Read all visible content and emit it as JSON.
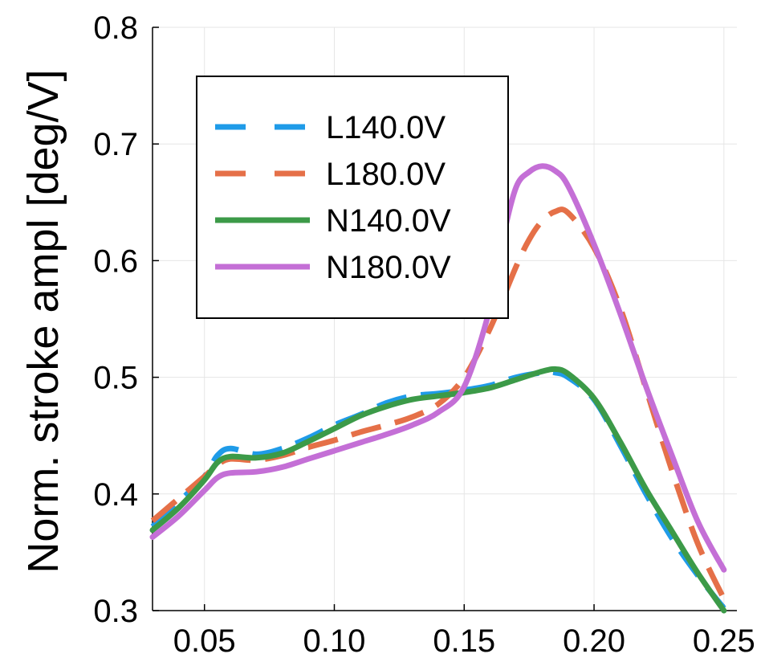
{
  "chart_data": {
    "type": "line",
    "title": "",
    "xlabel": "",
    "ylabel": "Norm. stroke ampl [deg/V]",
    "xlim": [
      0.03,
      0.255
    ],
    "ylim": [
      0.3,
      0.8
    ],
    "xticks": [
      0.05,
      0.1,
      0.15,
      0.2,
      0.25
    ],
    "xtick_labels": [
      "0.05",
      "0.10",
      "0.15",
      "0.20",
      "0.25"
    ],
    "yticks": [
      0.3,
      0.4,
      0.5,
      0.6,
      0.7,
      0.8
    ],
    "ytick_labels": [
      "0.3",
      "0.4",
      "0.5",
      "0.6",
      "0.7",
      "0.8"
    ],
    "grid": true,
    "legend_position": "top-left",
    "series": [
      {
        "name": "L140.0V",
        "color": "#1f9be8",
        "style": "dashed",
        "x": [
          0.03,
          0.04,
          0.05,
          0.055,
          0.06,
          0.07,
          0.08,
          0.09,
          0.1,
          0.11,
          0.12,
          0.13,
          0.14,
          0.15,
          0.16,
          0.17,
          0.18,
          0.185,
          0.19,
          0.2,
          0.21,
          0.22,
          0.23,
          0.24,
          0.25
        ],
        "y": [
          0.372,
          0.393,
          0.415,
          0.433,
          0.439,
          0.434,
          0.439,
          0.448,
          0.459,
          0.468,
          0.478,
          0.484,
          0.486,
          0.489,
          0.493,
          0.5,
          0.504,
          0.504,
          0.5,
          0.481,
          0.442,
          0.4,
          0.362,
          0.33,
          0.302
        ]
      },
      {
        "name": "L180.0V",
        "color": "#e57048",
        "style": "dashed",
        "x": [
          0.03,
          0.04,
          0.05,
          0.055,
          0.06,
          0.07,
          0.08,
          0.09,
          0.1,
          0.11,
          0.12,
          0.13,
          0.14,
          0.15,
          0.16,
          0.17,
          0.175,
          0.18,
          0.185,
          0.19,
          0.2,
          0.21,
          0.22,
          0.23,
          0.24,
          0.25
        ],
        "y": [
          0.377,
          0.396,
          0.415,
          0.425,
          0.43,
          0.429,
          0.433,
          0.44,
          0.446,
          0.453,
          0.459,
          0.466,
          0.477,
          0.5,
          0.542,
          0.595,
          0.618,
          0.634,
          0.642,
          0.641,
          0.611,
          0.56,
          0.49,
          0.42,
          0.357,
          0.31
        ]
      },
      {
        "name": "N140.0V",
        "color": "#3c9a48",
        "style": "solid",
        "x": [
          0.03,
          0.04,
          0.05,
          0.055,
          0.06,
          0.07,
          0.08,
          0.09,
          0.1,
          0.11,
          0.12,
          0.13,
          0.14,
          0.15,
          0.16,
          0.17,
          0.18,
          0.185,
          0.19,
          0.2,
          0.21,
          0.22,
          0.23,
          0.24,
          0.25
        ],
        "y": [
          0.369,
          0.388,
          0.412,
          0.427,
          0.432,
          0.431,
          0.435,
          0.445,
          0.456,
          0.467,
          0.475,
          0.481,
          0.484,
          0.487,
          0.491,
          0.498,
          0.505,
          0.507,
          0.503,
          0.482,
          0.445,
          0.404,
          0.368,
          0.332,
          0.298
        ]
      },
      {
        "name": "N180.0V",
        "color": "#c46fd6",
        "style": "solid",
        "x": [
          0.03,
          0.04,
          0.05,
          0.055,
          0.06,
          0.07,
          0.08,
          0.09,
          0.1,
          0.11,
          0.12,
          0.13,
          0.14,
          0.15,
          0.16,
          0.165,
          0.17,
          0.175,
          0.18,
          0.185,
          0.19,
          0.2,
          0.21,
          0.22,
          0.23,
          0.24,
          0.25
        ],
        "y": [
          0.363,
          0.381,
          0.403,
          0.414,
          0.418,
          0.419,
          0.423,
          0.43,
          0.437,
          0.444,
          0.451,
          0.459,
          0.47,
          0.492,
          0.56,
          0.62,
          0.663,
          0.676,
          0.681,
          0.677,
          0.664,
          0.614,
          0.555,
          0.492,
          0.433,
          0.376,
          0.335
        ]
      }
    ]
  }
}
